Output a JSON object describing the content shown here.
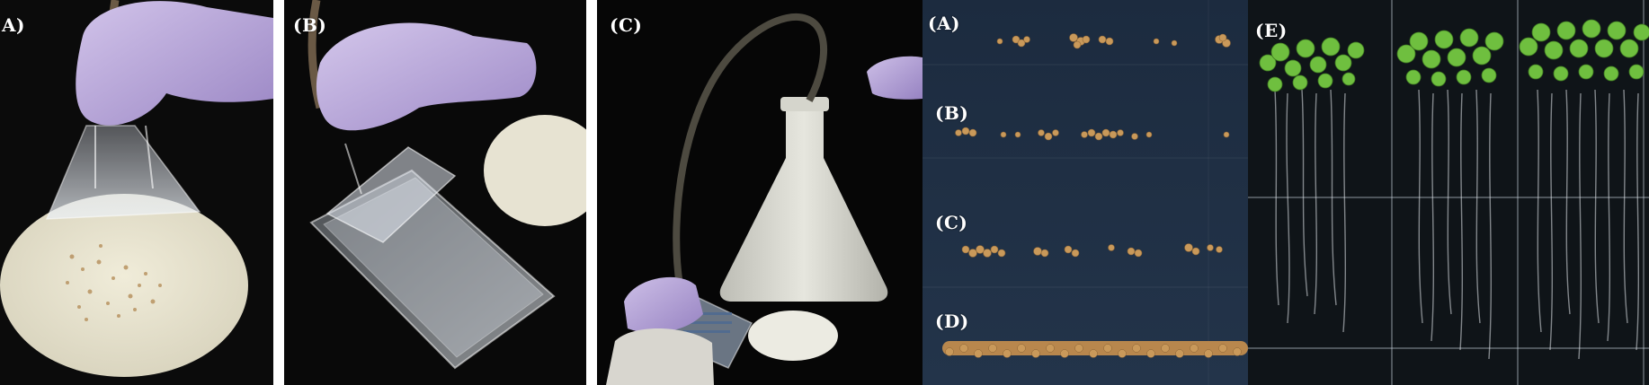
{
  "figure": {
    "panels": [
      {
        "id": "photo-a",
        "label": "A)",
        "subject": "gloved hand holding plastic scraper over seeds scattered on filter paper"
      },
      {
        "id": "photo-b",
        "label": "(B)",
        "subject": "gloved hand pressing scraper onto agar plate"
      },
      {
        "id": "photo-c",
        "label": "(C)",
        "subject": "vacuum tube connected to flask, scraper on plate beside filter disc"
      },
      {
        "id": "seed-rows",
        "row_labels": [
          "(A)",
          "(B)",
          "(C)",
          "(D)"
        ]
      },
      {
        "id": "seedlings",
        "label": "(E)"
      }
    ]
  },
  "colors": {
    "background": "#000000",
    "glove": "#b9a6d9",
    "filter_paper": "#e6e2cf",
    "plate_blue": "#1b2a3d",
    "seed": "#c79a5a",
    "leaf": "#6bbf3e"
  }
}
